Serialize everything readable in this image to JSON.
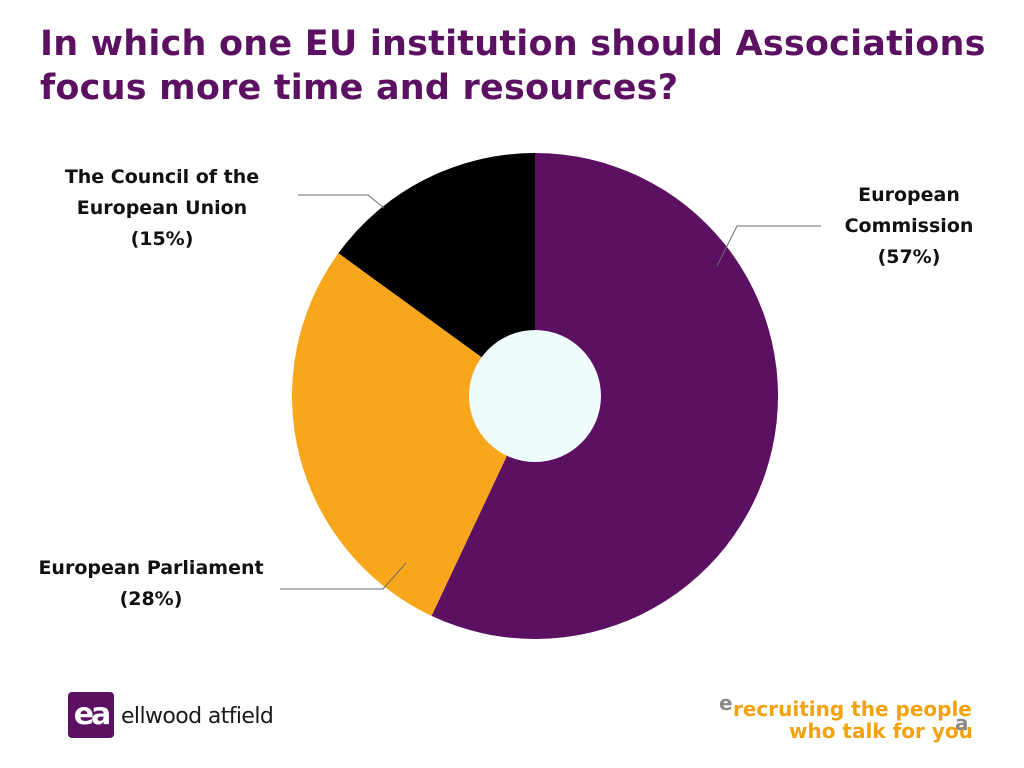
{
  "slide": {
    "title": "In which one EU institution should Associations focus more time and resources?"
  },
  "chart_data": {
    "type": "pie",
    "variant": "donut",
    "start_angle_deg": 0,
    "direction": "clockwise",
    "slices": [
      {
        "label_lines": [
          "European",
          "Commission",
          "(57%)"
        ],
        "value": 57,
        "color": "#5b1062"
      },
      {
        "label_lines": [
          "European Parliament",
          "(28%)"
        ],
        "value": 28,
        "color": "#f8a61b"
      },
      {
        "label_lines": [
          "The Council of the",
          "European Union",
          "(15%)"
        ],
        "value": 15,
        "color": "#000000"
      }
    ],
    "center_hole_color": "#effcfd",
    "leader_line_color": "#6d6d6d"
  },
  "branding": {
    "logo_mark": "ea",
    "logo_text": "ellwood atfield",
    "tagline_open_mark": "e",
    "tagline_line1": "recruiting the people",
    "tagline_line2": "who talk for you",
    "tagline_close_mark": "a",
    "brand_color": "#5b1062",
    "accent_color": "#f2a20f"
  }
}
